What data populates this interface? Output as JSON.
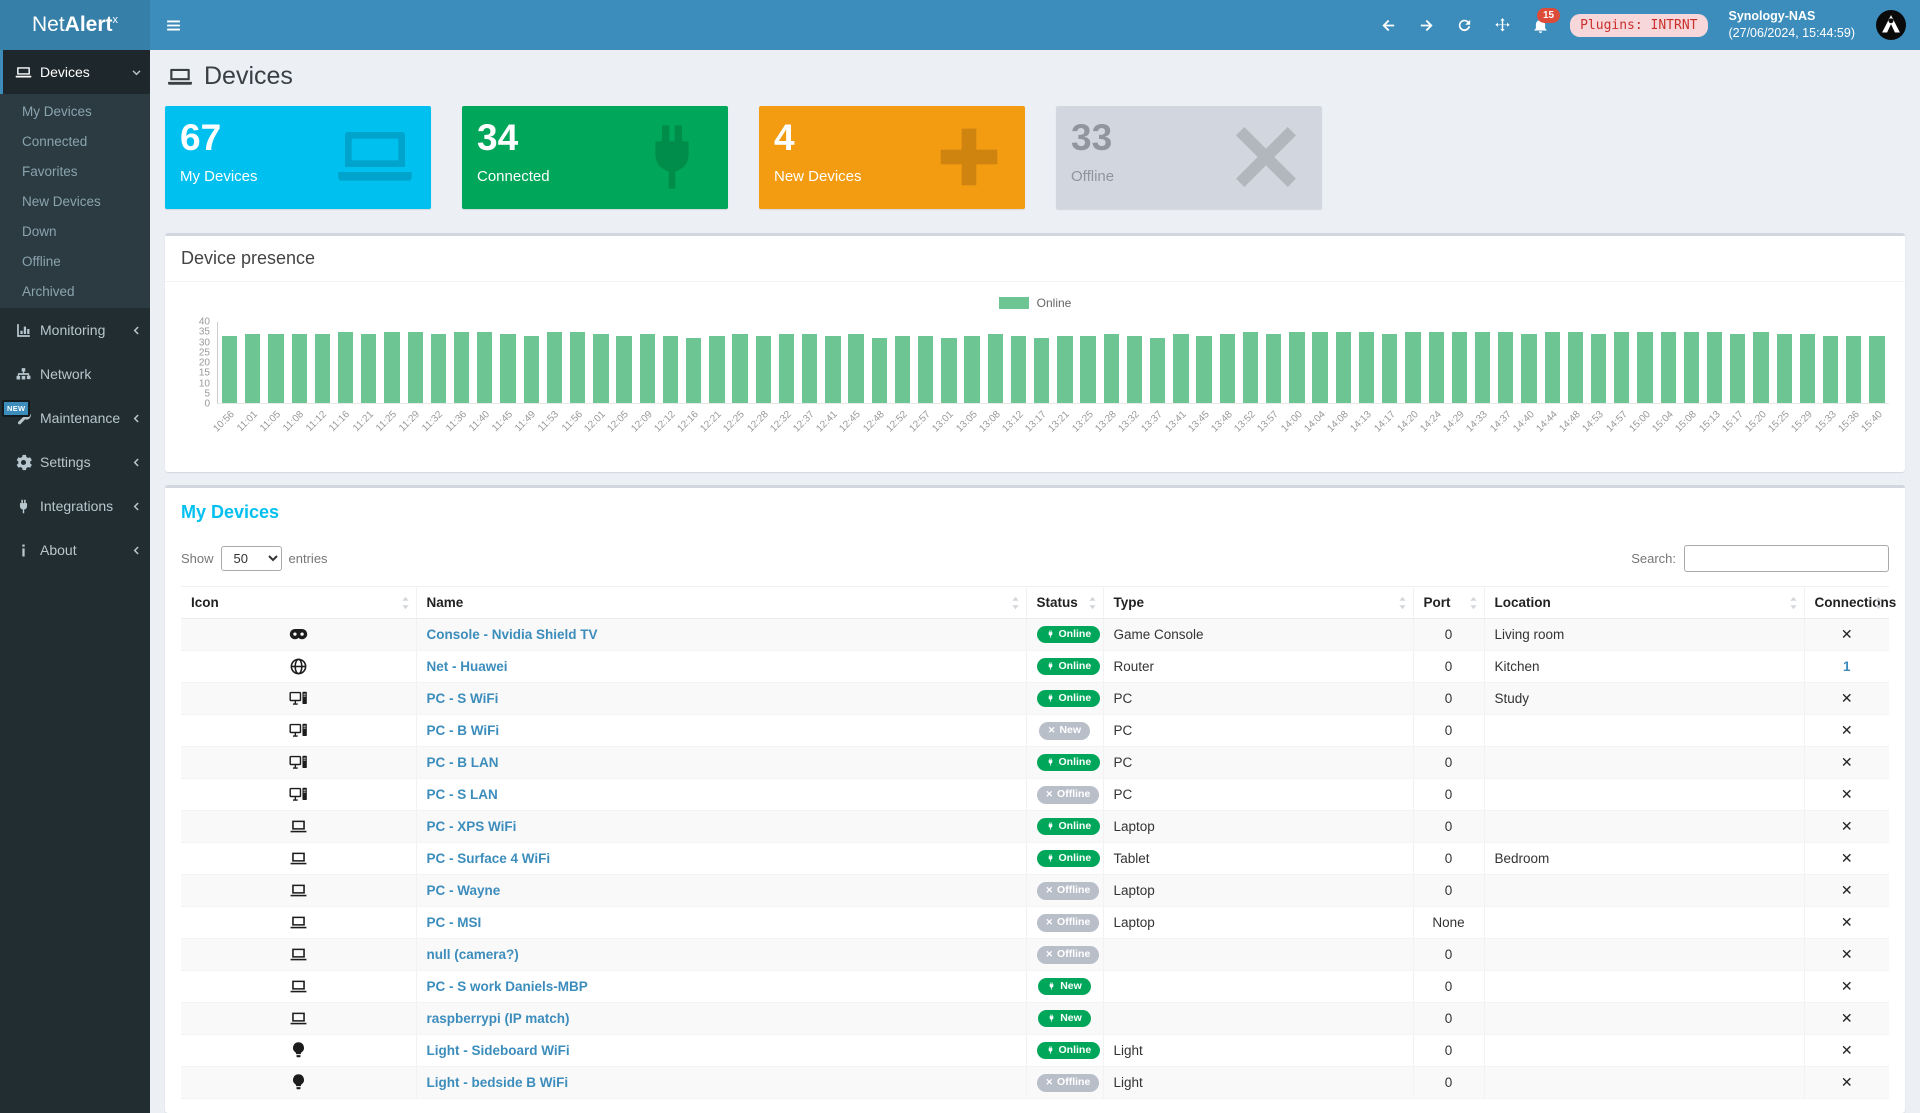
{
  "header": {
    "brand_prefix": "Net",
    "brand_bold": "Alert",
    "brand_sup": "x",
    "notification_count": "15",
    "plugins_badge": "Plugins: INTRNT",
    "server_name": "Synology-NAS",
    "server_time": "(27/06/2024, 15:44:59)"
  },
  "sidebar": {
    "items": [
      {
        "id": "devices",
        "label": "Devices",
        "icon": "laptop-icon",
        "expanded": true,
        "active": true,
        "children": [
          "My Devices",
          "Connected",
          "Favorites",
          "New Devices",
          "Down",
          "Offline",
          "Archived"
        ]
      },
      {
        "id": "monitoring",
        "label": "Monitoring",
        "icon": "chart-icon",
        "chevron": true
      },
      {
        "id": "network",
        "label": "Network",
        "icon": "sitemap-icon",
        "chevron": false
      },
      {
        "id": "maintenance",
        "label": "Maintenance",
        "icon": "wrench-icon",
        "chevron": true,
        "badge": "NEW"
      },
      {
        "id": "settings",
        "label": "Settings",
        "icon": "gear-icon",
        "chevron": true
      },
      {
        "id": "integrations",
        "label": "Integrations",
        "icon": "plug-icon",
        "chevron": true
      },
      {
        "id": "about",
        "label": "About",
        "icon": "info-icon",
        "chevron": true
      }
    ]
  },
  "page": {
    "title": "Devices"
  },
  "summary_cards": [
    {
      "value": "67",
      "label": "My Devices",
      "bg": "#00c0ef",
      "icon": "laptop-icon",
      "muted": false
    },
    {
      "value": "34",
      "label": "Connected",
      "bg": "#00a65a",
      "icon": "plug-icon",
      "muted": false
    },
    {
      "value": "4",
      "label": "New Devices",
      "bg": "#f39c12",
      "icon": "plus-icon",
      "muted": false
    },
    {
      "value": "33",
      "label": "Offline",
      "bg": "#d2d6de",
      "icon": "times-icon",
      "muted": true
    }
  ],
  "presence_panel": {
    "title": "Device presence"
  },
  "chart_data": {
    "type": "bar",
    "title": "Device presence",
    "legend": [
      "Online"
    ],
    "legend_position": "top-center",
    "bar_color": "#6dc593",
    "grid": false,
    "ylim": [
      0,
      40
    ],
    "yticks": [
      0,
      5,
      10,
      15,
      20,
      25,
      30,
      35,
      40
    ],
    "x": [
      "10:56",
      "11:01",
      "11:05",
      "11:08",
      "11:12",
      "11:16",
      "11:21",
      "11:25",
      "11:29",
      "11:32",
      "11:36",
      "11:40",
      "11:45",
      "11:49",
      "11:53",
      "11:56",
      "12:01",
      "12:05",
      "12:09",
      "12:12",
      "12:16",
      "12:21",
      "12:25",
      "12:28",
      "12:32",
      "12:37",
      "12:41",
      "12:45",
      "12:48",
      "12:52",
      "12:57",
      "13:01",
      "13:05",
      "13:08",
      "13:12",
      "13:17",
      "13:21",
      "13:25",
      "13:28",
      "13:32",
      "13:37",
      "13:41",
      "13:45",
      "13:48",
      "13:52",
      "13:57",
      "14:00",
      "14:04",
      "14:08",
      "14:13",
      "14:17",
      "14:20",
      "14:24",
      "14:29",
      "14:33",
      "14:37",
      "14:40",
      "14:44",
      "14:48",
      "14:53",
      "14:57",
      "15:00",
      "15:04",
      "15:08",
      "15:13",
      "15:17",
      "15:20",
      "15:25",
      "15:29",
      "15:33",
      "15:36",
      "15:40"
    ],
    "series": [
      {
        "name": "Online",
        "values": [
          33,
          34,
          34,
          34,
          34,
          35,
          34,
          35,
          35,
          34,
          35,
          35,
          34,
          33,
          35,
          35,
          34,
          33,
          34,
          33,
          32,
          33,
          34,
          33,
          34,
          34,
          33,
          34,
          32,
          33,
          33,
          32,
          33,
          34,
          33,
          32,
          33,
          33,
          34,
          33,
          32,
          34,
          33,
          34,
          35,
          34,
          35,
          35,
          35,
          35,
          34,
          35,
          35,
          35,
          35,
          35,
          34,
          35,
          35,
          34,
          35,
          35,
          35,
          35,
          35,
          34,
          35,
          34,
          34,
          33,
          33,
          33
        ]
      }
    ]
  },
  "devices_table": {
    "title": "My Devices",
    "show_label": "Show",
    "entries_label": "entries",
    "page_length": "50",
    "length_options": [
      "50"
    ],
    "search_label": "Search:",
    "search_value": "",
    "columns": [
      "Icon",
      "Name",
      "Status",
      "Type",
      "Port",
      "Location",
      "Connections"
    ],
    "rows": [
      {
        "icon": "gamepad-icon",
        "name": "Console - Nvidia Shield TV",
        "status": "Online",
        "status_style": "online",
        "type": "Game Console",
        "port": "0",
        "location": "Living room",
        "connections": "x"
      },
      {
        "icon": "globe-icon",
        "name": "Net - Huawei",
        "status": "Online",
        "status_style": "online",
        "type": "Router",
        "port": "0",
        "location": "Kitchen",
        "connections": "1"
      },
      {
        "icon": "desktop-icon",
        "name": "PC - S WiFi",
        "status": "Online",
        "status_style": "online",
        "type": "PC",
        "port": "0",
        "location": "Study",
        "connections": "x"
      },
      {
        "icon": "desktop-icon",
        "name": "PC - B WiFi",
        "status": "New",
        "status_style": "new-offline",
        "type": "PC",
        "port": "0",
        "location": "",
        "connections": "x"
      },
      {
        "icon": "desktop-icon",
        "name": "PC - B LAN",
        "status": "Online",
        "status_style": "online",
        "type": "PC",
        "port": "0",
        "location": "",
        "connections": "x"
      },
      {
        "icon": "desktop-icon",
        "name": "PC - S LAN",
        "status": "Offline",
        "status_style": "offline",
        "type": "PC",
        "port": "0",
        "location": "",
        "connections": "x"
      },
      {
        "icon": "laptop-outline-icon",
        "name": "PC - XPS WiFi",
        "status": "Online",
        "status_style": "online",
        "type": "Laptop",
        "port": "0",
        "location": "",
        "connections": "x"
      },
      {
        "icon": "laptop-outline-icon",
        "name": "PC - Surface 4 WiFi",
        "status": "Online",
        "status_style": "online",
        "type": "Tablet",
        "port": "0",
        "location": "Bedroom",
        "connections": "x"
      },
      {
        "icon": "laptop-outline-icon",
        "name": "PC - Wayne",
        "status": "Offline",
        "status_style": "offline",
        "type": "Laptop",
        "port": "0",
        "location": "",
        "connections": "x"
      },
      {
        "icon": "laptop-outline-icon",
        "name": "PC - MSI",
        "status": "Offline",
        "status_style": "offline",
        "type": "Laptop",
        "port": "None",
        "location": "",
        "connections": "x"
      },
      {
        "icon": "laptop-outline-icon",
        "name": "null (camera?)",
        "status": "Offline",
        "status_style": "offline",
        "type": "",
        "port": "0",
        "location": "",
        "connections": "x"
      },
      {
        "icon": "laptop-outline-icon",
        "name": "PC - S work Daniels-MBP",
        "status": "New",
        "status_style": "new-online",
        "type": "",
        "port": "0",
        "location": "",
        "connections": "x"
      },
      {
        "icon": "laptop-outline-icon",
        "name": "raspberrypi (IP match)",
        "status": "New",
        "status_style": "new-online",
        "type": "",
        "port": "0",
        "location": "",
        "connections": "x"
      },
      {
        "icon": "lightbulb-icon",
        "name": "Light - Sideboard WiFi",
        "status": "Online",
        "status_style": "online",
        "type": "Light",
        "port": "0",
        "location": "",
        "connections": "x"
      },
      {
        "icon": "lightbulb-icon",
        "name": "Light - bedside B WiFi",
        "status": "Offline",
        "status_style": "offline",
        "type": "Light",
        "port": "0",
        "location": "",
        "connections": "x"
      }
    ]
  }
}
